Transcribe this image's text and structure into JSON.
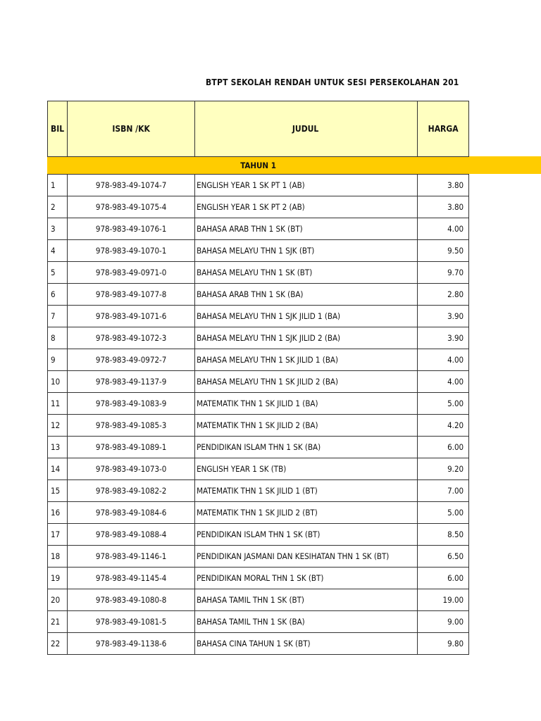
{
  "title": "BTPT SEKOLAH RENDAH UNTUK  SESI PERSEKOLAHAN 201",
  "headers": {
    "bil": "BIL",
    "isbn": "ISBN /KK",
    "judul": "JUDUL",
    "harga": "HARGA"
  },
  "section": "TAHUN 1",
  "colors": {
    "header_bg": "#ffffc0",
    "section_bg": "#ffcc00"
  },
  "rows": [
    {
      "bil": "1",
      "isbn": "978-983-49-1074-7",
      "judul": "ENGLISH YEAR 1 SK PT 1 (AB)",
      "harga": "3.80"
    },
    {
      "bil": "2",
      "isbn": "978-983-49-1075-4",
      "judul": "ENGLISH YEAR 1 SK PT 2 (AB)",
      "harga": "3.80"
    },
    {
      "bil": "3",
      "isbn": "978-983-49-1076-1",
      "judul": "BAHASA ARAB THN 1 SK (BT)",
      "harga": "4.00"
    },
    {
      "bil": "4",
      "isbn": "978-983-49-1070-1",
      "judul": "BAHASA MELAYU THN 1 SJK (BT)",
      "harga": "9.50"
    },
    {
      "bil": "5",
      "isbn": "978-983-49-0971-0",
      "judul": "BAHASA MELAYU THN 1 SK (BT)",
      "harga": "9.70"
    },
    {
      "bil": "6",
      "isbn": "978-983-49-1077-8",
      "judul": "BAHASA ARAB THN 1 SK (BA)",
      "harga": "2.80"
    },
    {
      "bil": "7",
      "isbn": "978-983-49-1071-6",
      "judul": "BAHASA MELAYU THN 1 SJK JILID 1 (BA)",
      "harga": "3.90"
    },
    {
      "bil": "8",
      "isbn": "978-983-49-1072-3",
      "judul": "BAHASA MELAYU THN 1 SJK JILID 2 (BA)",
      "harga": "3.90"
    },
    {
      "bil": "9",
      "isbn": "978-983-49-0972-7",
      "judul": "BAHASA MELAYU THN 1 SK JILID 1 (BA)",
      "harga": "4.00"
    },
    {
      "bil": "10",
      "isbn": "978-983-49-1137-9",
      "judul": "BAHASA MELAYU THN 1 SK JILID 2 (BA)",
      "harga": "4.00"
    },
    {
      "bil": "11",
      "isbn": "978-983-49-1083-9",
      "judul": "MATEMATIK THN 1 SK JILID 1 (BA)",
      "harga": "5.00"
    },
    {
      "bil": "12",
      "isbn": "978-983-49-1085-3",
      "judul": "MATEMATIK THN 1 SK JILID 2 (BA)",
      "harga": "4.20"
    },
    {
      "bil": "13",
      "isbn": "978-983-49-1089-1",
      "judul": "PENDIDIKAN ISLAM THN 1 SK (BA)",
      "harga": "6.00"
    },
    {
      "bil": "14",
      "isbn": "978-983-49-1073-0",
      "judul": "ENGLISH YEAR 1 SK (TB)",
      "harga": "9.20"
    },
    {
      "bil": "15",
      "isbn": "978-983-49-1082-2",
      "judul": "MATEMATIK THN 1 SK JILID 1 (BT)",
      "harga": "7.00"
    },
    {
      "bil": "16",
      "isbn": "978-983-49-1084-6",
      "judul": "MATEMATIK THN 1 SK JILID 2 (BT)",
      "harga": "5.00"
    },
    {
      "bil": "17",
      "isbn": "978-983-49-1088-4",
      "judul": "PENDIDIKAN ISLAM THN 1 SK (BT)",
      "harga": "8.50"
    },
    {
      "bil": "18",
      "isbn": "978-983-49-1146-1",
      "judul": "PENDIDIKAN JASMANI DAN KESIHATAN THN 1 SK (BT)",
      "harga": "6.50"
    },
    {
      "bil": "19",
      "isbn": "978-983-49-1145-4",
      "judul": "PENDIDIKAN MORAL THN  1 SK (BT)",
      "harga": "6.00"
    },
    {
      "bil": "20",
      "isbn": "978-983-49-1080-8",
      "judul": "BAHASA TAMIL THN 1 SK (BT)",
      "harga": "19.00"
    },
    {
      "bil": "21",
      "isbn": "978-983-49-1081-5",
      "judul": "BAHASA TAMIL THN 1 SK (BA)",
      "harga": "9.00"
    },
    {
      "bil": "22",
      "isbn": "978-983-49-1138-6",
      "judul": "BAHASA CINA TAHUN 1 SK (BT)",
      "harga": "9.80"
    }
  ]
}
